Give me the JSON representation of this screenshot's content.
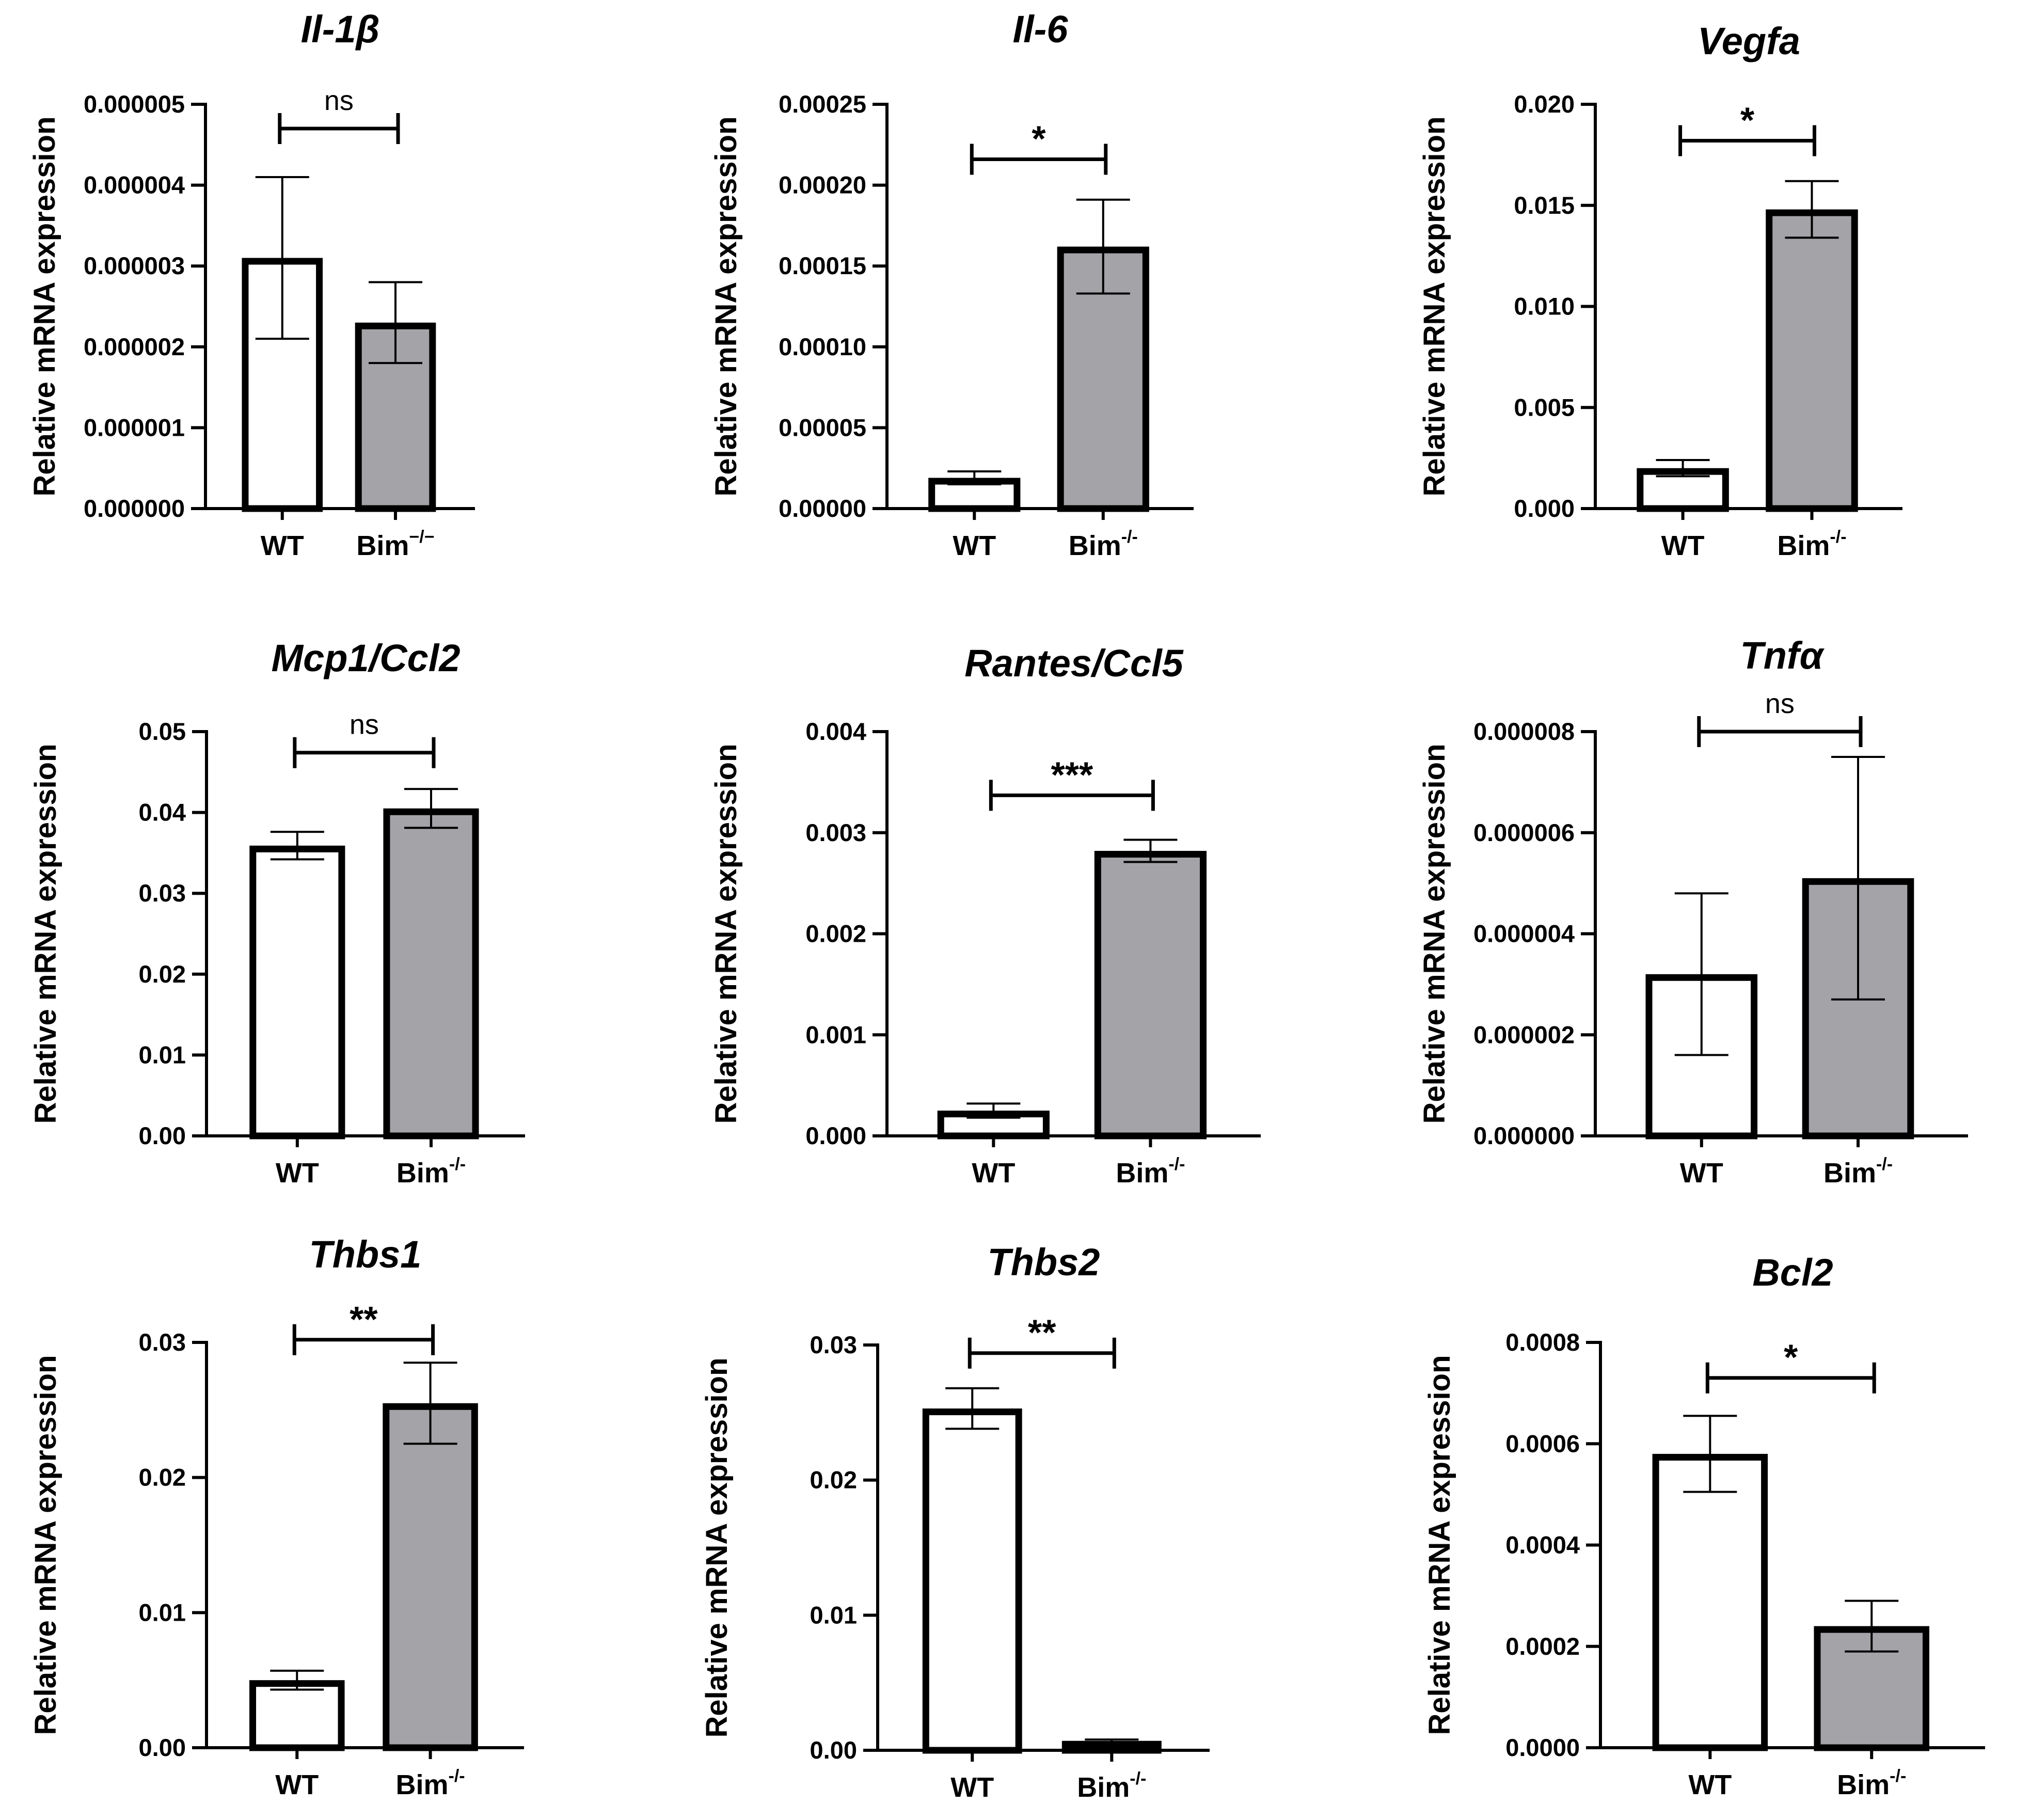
{
  "colors": {
    "wt_bar": "#ffffff",
    "bim_bar": "#a4a3a8",
    "stroke": "#000000"
  },
  "chart_data": [
    {
      "type": "bar",
      "title": "Il-1β",
      "ylabel": "Relative mRNA expression",
      "xlabel": "",
      "categories": [
        "WT",
        "Bim"
      ],
      "category_superscripts": [
        "",
        "−/−"
      ],
      "values": [
        3.1e-06,
        2.3e-06
      ],
      "errors": [
        1e-06,
        5e-07
      ],
      "ylim": [
        0,
        5e-06
      ],
      "yticks": [
        0,
        1e-06,
        2e-06,
        3e-06,
        4e-06,
        5e-06
      ],
      "ytick_labels": [
        "0.000000",
        "0.000001",
        "0.000002",
        "0.000003",
        "0.000004",
        "0.000005"
      ],
      "significance": "ns",
      "bracket_y": 4.7e-06
    },
    {
      "type": "bar",
      "title": "Il-6",
      "ylabel": "Relative mRNA expression",
      "xlabel": "",
      "categories": [
        "WT",
        "Bim"
      ],
      "category_superscripts": [
        "",
        "-/-"
      ],
      "values": [
        1.9e-05,
        0.000162
      ],
      "errors": [
        4e-06,
        2.9e-05
      ],
      "ylim": [
        0,
        0.00025
      ],
      "yticks": [
        0,
        5e-05,
        0.0001,
        0.00015,
        0.0002,
        0.00025
      ],
      "ytick_labels": [
        "0.00000",
        "0.00005",
        "0.00010",
        "0.00015",
        "0.00020",
        "0.00025"
      ],
      "significance": "*",
      "bracket_y": 0.000216
    },
    {
      "type": "bar",
      "title": "Vegfa",
      "ylabel": "Relative mRNA expression",
      "xlabel": "",
      "categories": [
        "WT",
        "Bim"
      ],
      "category_superscripts": [
        "",
        "-/-"
      ],
      "values": [
        0.002,
        0.0148
      ],
      "errors": [
        0.0004,
        0.0014
      ],
      "ylim": [
        0,
        0.02
      ],
      "yticks": [
        0,
        0.005,
        0.01,
        0.015,
        0.02
      ],
      "ytick_labels": [
        "0.000",
        "0.005",
        "0.010",
        "0.015",
        "0.020"
      ],
      "significance": "*",
      "bracket_y": 0.0182
    },
    {
      "type": "bar",
      "title": "Mcp1/Ccl2",
      "ylabel": "Relative mRNA expression",
      "xlabel": "",
      "categories": [
        "WT",
        "Bim"
      ],
      "category_superscripts": [
        "",
        "-/-"
      ],
      "values": [
        0.0359,
        0.0405
      ],
      "errors": [
        0.0017,
        0.0024
      ],
      "ylim": [
        0,
        0.05
      ],
      "yticks": [
        0,
        0.01,
        0.02,
        0.03,
        0.04,
        0.05
      ],
      "ytick_labels": [
        "0.00",
        "0.01",
        "0.02",
        "0.03",
        "0.04",
        "0.05"
      ],
      "significance": "ns",
      "bracket_y": 0.0474
    },
    {
      "type": "bar",
      "title": "Rantes/Ccl5",
      "ylabel": "Relative mRNA expression",
      "xlabel": "",
      "categories": [
        "WT",
        "Bim"
      ],
      "category_superscripts": [
        "",
        "-/-"
      ],
      "values": [
        0.00025,
        0.00282
      ],
      "errors": [
        7e-05,
        0.00011
      ],
      "ylim": [
        0,
        0.004
      ],
      "yticks": [
        0,
        0.001,
        0.002,
        0.003,
        0.004
      ],
      "ytick_labels": [
        "0.000",
        "0.001",
        "0.002",
        "0.003",
        "0.004"
      ],
      "significance": "***",
      "bracket_y": 0.00337
    },
    {
      "type": "bar",
      "title": "Tnfα",
      "ylabel": "Relative mRNA expression",
      "xlabel": "",
      "categories": [
        "WT",
        "Bim"
      ],
      "category_superscripts": [
        "",
        "-/-"
      ],
      "values": [
        3.2e-06,
        5.1e-06
      ],
      "errors": [
        1.6e-06,
        2.4e-06
      ],
      "ylim": [
        0,
        8e-06
      ],
      "yticks": [
        0,
        2e-06,
        4e-06,
        6e-06,
        8e-06
      ],
      "ytick_labels": [
        "0.000000",
        "0.000002",
        "0.000004",
        "0.000006",
        "0.000008"
      ],
      "significance": "ns",
      "bracket_y": 8e-06
    },
    {
      "type": "bar",
      "title": "Thbs1",
      "ylabel": "Relative mRNA expression",
      "xlabel": "",
      "categories": [
        "WT",
        "Bim"
      ],
      "category_superscripts": [
        "",
        "-/-"
      ],
      "values": [
        0.005,
        0.0255
      ],
      "errors": [
        0.0007,
        0.003
      ],
      "ylim": [
        0,
        0.03
      ],
      "yticks": [
        0,
        0.01,
        0.02,
        0.03
      ],
      "ytick_labels": [
        "0.00",
        "0.01",
        "0.02",
        "0.03"
      ],
      "significance": "**",
      "bracket_y": 0.0302
    },
    {
      "type": "bar",
      "title": "Thbs2",
      "ylabel": "Relative mRNA expression",
      "xlabel": "",
      "categories": [
        "WT",
        "Bim"
      ],
      "category_superscripts": [
        "",
        "-/-"
      ],
      "values": [
        0.0253,
        0.0007
      ],
      "errors": [
        0.0015,
        0.0001
      ],
      "ylim": [
        0,
        0.03
      ],
      "yticks": [
        0,
        0.01,
        0.02,
        0.03
      ],
      "ytick_labels": [
        "0.00",
        "0.01",
        "0.02",
        "0.03"
      ],
      "significance": "**",
      "bracket_y": 0.0294
    },
    {
      "type": "bar",
      "title": "Bcl2",
      "ylabel": "Relative mRNA expression",
      "xlabel": "",
      "categories": [
        "WT",
        "Bim"
      ],
      "category_superscripts": [
        "",
        "-/-"
      ],
      "values": [
        0.00058,
        0.00024
      ],
      "errors": [
        7.5e-05,
        5e-05
      ],
      "ylim": [
        0,
        0.0008
      ],
      "yticks": [
        0,
        0.0002,
        0.0004,
        0.0006,
        0.0008
      ],
      "ytick_labels": [
        "0.0000",
        "0.0002",
        "0.0004",
        "0.0006",
        "0.0008"
      ],
      "significance": "*",
      "bracket_y": 0.00073
    }
  ]
}
